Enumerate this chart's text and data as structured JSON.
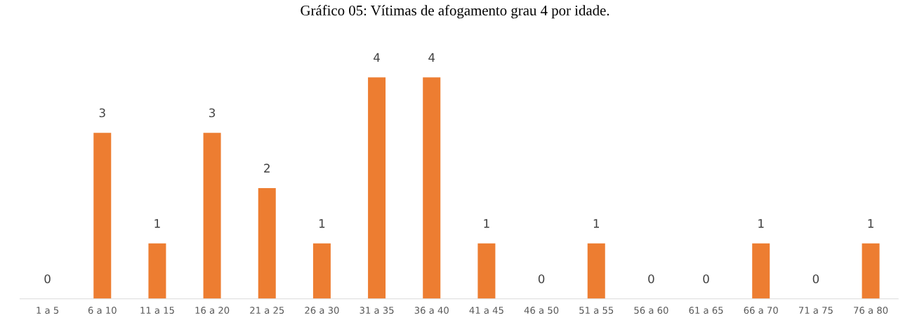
{
  "chart_data": {
    "type": "bar",
    "title": "Gráfico 05: Vítimas de afogamento grau 4 por idade.",
    "categories": [
      "1 a 5",
      "6 a 10",
      "11 a 15",
      "16 a 20",
      "21 a 25",
      "26 a 30",
      "31 a 35",
      "36 a 40",
      "41 a 45",
      "46 a 50",
      "51 a 55",
      "56 a 60",
      "61 a 65",
      "66 a 70",
      "71 a 75",
      "76 a 80"
    ],
    "values": [
      0,
      3,
      1,
      3,
      2,
      1,
      4,
      4,
      1,
      0,
      1,
      0,
      0,
      1,
      0,
      1
    ],
    "color": "#ed7d31",
    "data_labels": true,
    "grid": false,
    "legend": false
  }
}
